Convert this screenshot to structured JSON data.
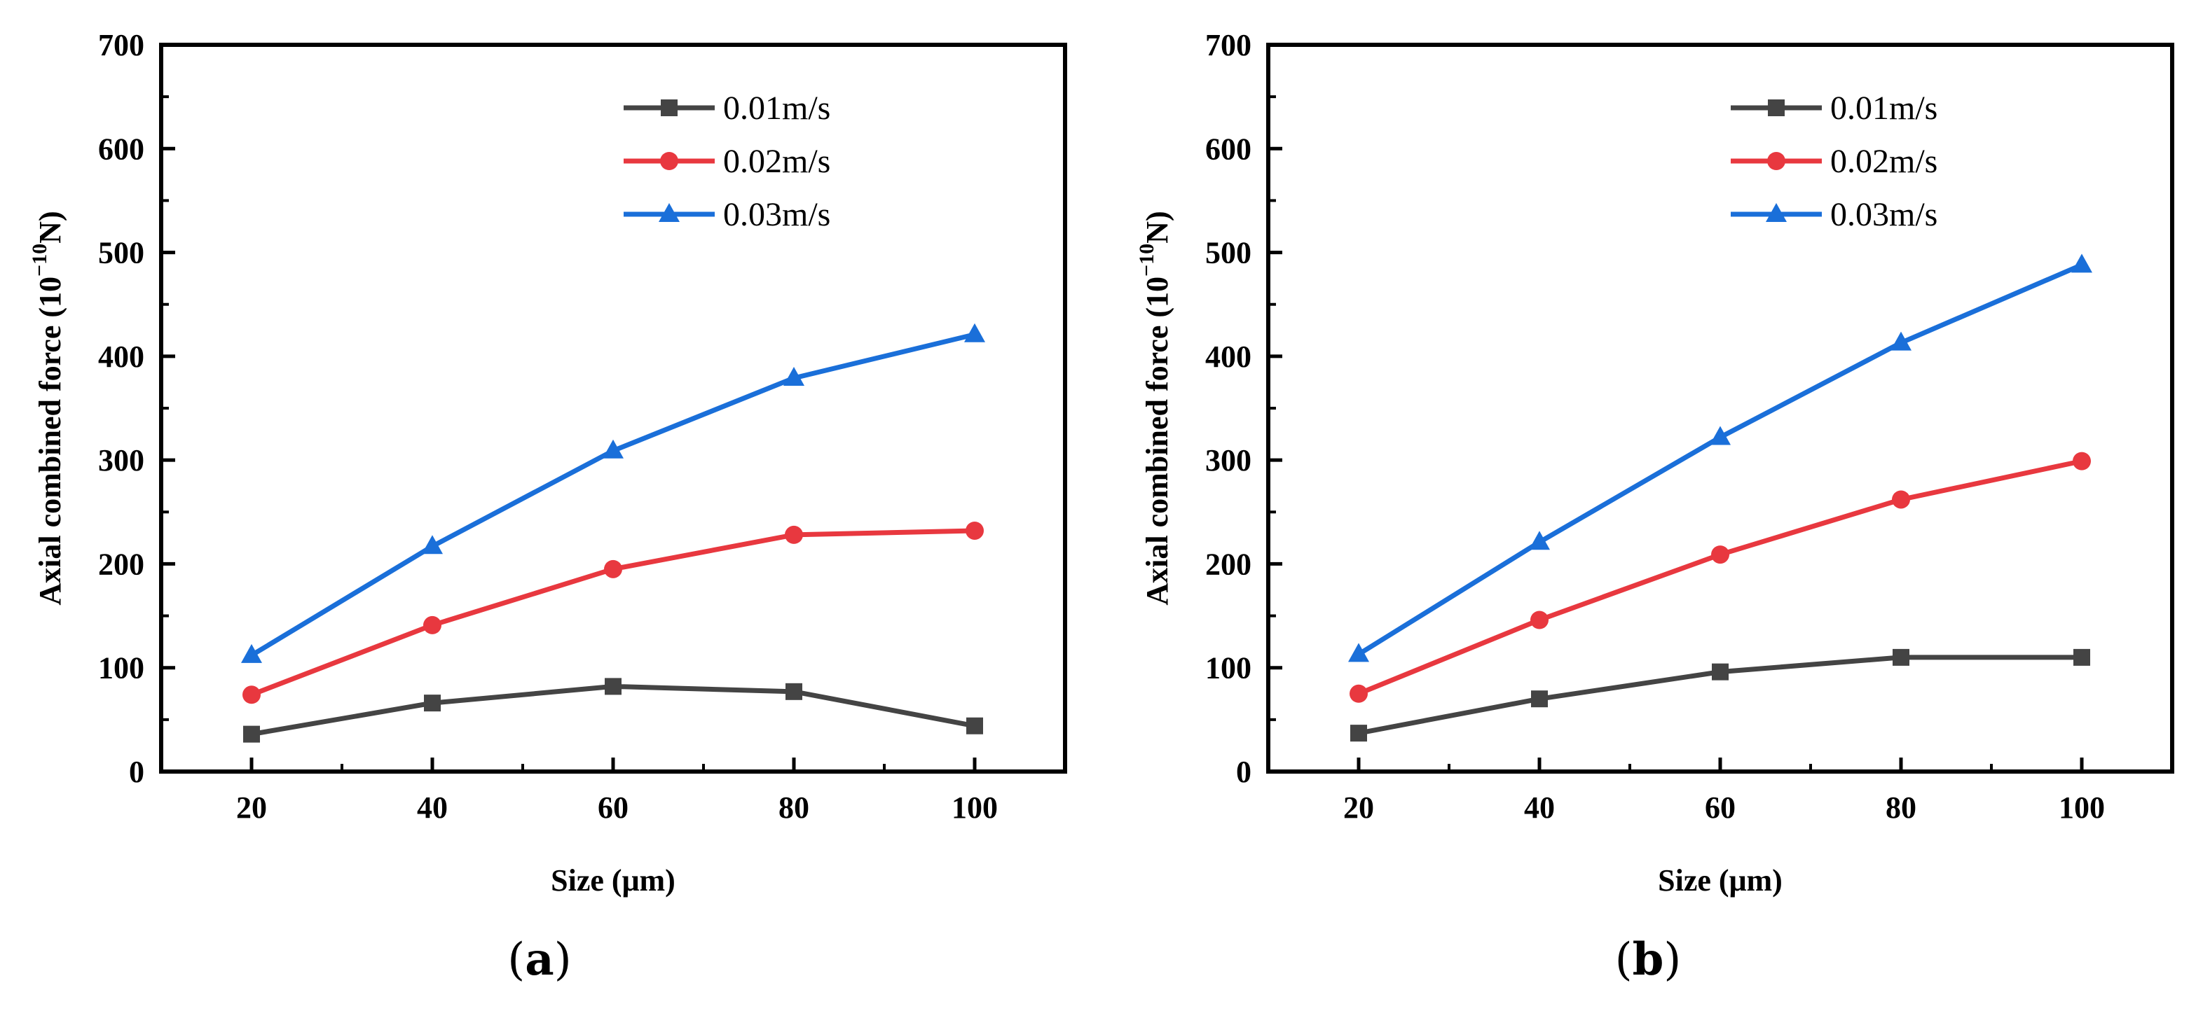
{
  "chart_data": [
    {
      "panel_label": "a",
      "type": "line",
      "xlabel": "Size (μm)",
      "ylabel": "Axial combined force",
      "ylabel_unit": "(10",
      "ylabel_exp": "−10",
      "ylabel_tail": "N)",
      "x": [
        20,
        40,
        60,
        80,
        100
      ],
      "xlim": [
        10,
        110
      ],
      "ylim": [
        0,
        700
      ],
      "xticks": [
        20,
        40,
        60,
        80,
        100
      ],
      "yticks": [
        0,
        100,
        200,
        300,
        400,
        500,
        600,
        700
      ],
      "legend_position": "top-right",
      "series": [
        {
          "name": "0.01m/s",
          "color": "#444444",
          "marker": "square",
          "values": [
            36,
            66,
            82,
            77,
            44
          ]
        },
        {
          "name": "0.02m/s",
          "color": "#e8383f",
          "marker": "circle",
          "values": [
            74,
            141,
            195,
            228,
            232
          ]
        },
        {
          "name": "0.03m/s",
          "color": "#1a6fd9",
          "marker": "triangle",
          "values": [
            112,
            217,
            309,
            379,
            421
          ]
        }
      ]
    },
    {
      "panel_label": "b",
      "type": "line",
      "xlabel": "Size (μm)",
      "ylabel": "Axial combined force",
      "ylabel_unit": "(10",
      "ylabel_exp": "−10",
      "ylabel_tail": "N)",
      "x": [
        20,
        40,
        60,
        80,
        100
      ],
      "xlim": [
        10,
        110
      ],
      "ylim": [
        0,
        700
      ],
      "xticks": [
        20,
        40,
        60,
        80,
        100
      ],
      "yticks": [
        0,
        100,
        200,
        300,
        400,
        500,
        600,
        700
      ],
      "legend_position": "top-right",
      "series": [
        {
          "name": "0.01m/s",
          "color": "#444444",
          "marker": "square",
          "values": [
            37,
            70,
            96,
            110,
            110
          ]
        },
        {
          "name": "0.02m/s",
          "color": "#e8383f",
          "marker": "circle",
          "values": [
            75,
            146,
            209,
            262,
            299
          ]
        },
        {
          "name": "0.03m/s",
          "color": "#1a6fd9",
          "marker": "triangle",
          "values": [
            113,
            221,
            322,
            413,
            488
          ]
        }
      ]
    }
  ]
}
